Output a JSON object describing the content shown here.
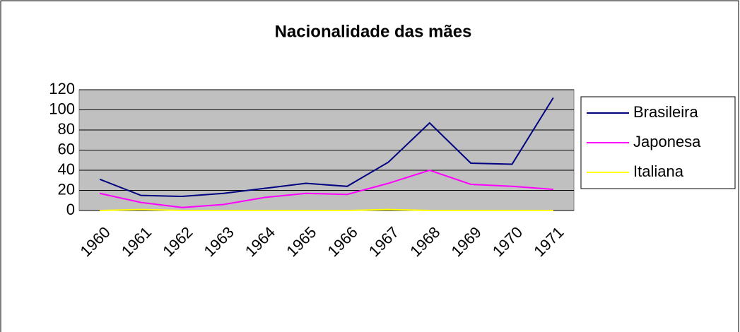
{
  "chart_data": {
    "type": "line",
    "title": "Nacionalidade das mães",
    "categories": [
      "1960",
      "1961",
      "1962",
      "1963",
      "1964",
      "1965",
      "1966",
      "1967",
      "1968",
      "1969",
      "1970",
      "1971"
    ],
    "series": [
      {
        "name": "Brasileira",
        "color": "#000080",
        "values": [
          31,
          15,
          14,
          17,
          22,
          27,
          24,
          48,
          87,
          47,
          46,
          112
        ]
      },
      {
        "name": "Japonesa",
        "color": "#ff00ff",
        "values": [
          17,
          8,
          3,
          6,
          13,
          17,
          16,
          27,
          40,
          26,
          24,
          21
        ]
      },
      {
        "name": "Italiana",
        "color": "#ffff00",
        "values": [
          0,
          1,
          0,
          0,
          0,
          0,
          0,
          1,
          0,
          0,
          0,
          0
        ]
      }
    ],
    "ylim": [
      0,
      120
    ],
    "yticks": [
      0,
      20,
      40,
      60,
      80,
      100,
      120
    ],
    "grid": true,
    "legend": "right"
  }
}
